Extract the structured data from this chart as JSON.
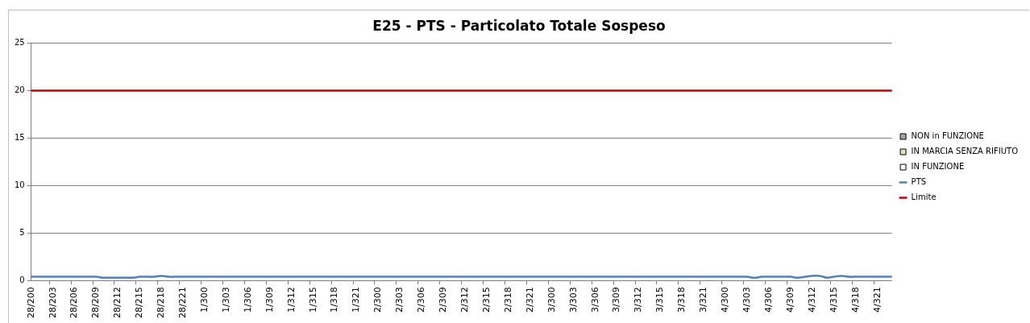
{
  "chart_data": {
    "type": "line",
    "title": "E25 - PTS - Particolato Totale Sospeso",
    "categories": [
      "28/200",
      null,
      null,
      "28/203",
      null,
      null,
      "28/206",
      null,
      null,
      "28/209",
      null,
      null,
      "28/212",
      null,
      null,
      "28/215",
      null,
      null,
      "28/218",
      null,
      null,
      "28/221",
      null,
      null,
      "1/300",
      null,
      null,
      "1/303",
      null,
      null,
      "1/306",
      null,
      null,
      "1/309",
      null,
      null,
      "1/312",
      null,
      null,
      "1/315",
      null,
      null,
      "1/318",
      null,
      null,
      "1/321",
      null,
      null,
      "2/300",
      null,
      null,
      "2/303",
      null,
      null,
      "2/306",
      null,
      null,
      "2/309",
      null,
      null,
      "2/312",
      null,
      null,
      "2/315",
      null,
      null,
      "2/318",
      null,
      null,
      "2/321",
      null,
      null,
      "3/300",
      null,
      null,
      "3/303",
      null,
      null,
      "3/306",
      null,
      null,
      "3/309",
      null,
      null,
      "3/312",
      null,
      null,
      "3/315",
      null,
      null,
      "3/318",
      null,
      null,
      "3/321",
      null,
      null,
      "4/300",
      null,
      null,
      "4/303",
      null,
      null,
      "4/306",
      null,
      null,
      "4/309",
      null,
      null,
      "4/312",
      null,
      null,
      "4/315",
      null,
      null,
      "4/318",
      null,
      null,
      "4/321",
      null,
      null
    ],
    "series": [
      {
        "name": "NON in FUNZIONE",
        "type": "bar",
        "color": "#a6a6a6",
        "values": [
          null,
          null,
          null,
          null,
          null,
          null,
          null,
          null,
          null,
          null,
          null,
          null,
          null,
          null,
          null,
          null,
          null,
          null,
          null,
          null,
          null,
          null,
          null,
          null,
          null,
          null,
          null,
          null,
          null,
          null,
          null,
          null,
          null,
          null,
          null,
          null,
          null,
          null,
          null,
          null,
          null,
          null,
          null,
          null,
          null,
          null,
          null,
          null,
          null,
          null,
          null,
          null,
          null,
          null,
          null,
          null,
          null,
          null,
          null,
          null,
          null,
          null,
          null,
          null,
          null,
          null,
          null,
          null,
          null,
          null,
          null,
          null,
          null,
          null,
          null,
          null,
          null,
          null,
          null,
          null,
          null,
          null,
          null,
          null,
          null,
          null,
          null,
          null,
          null,
          null,
          null,
          null,
          null,
          null,
          null,
          null,
          null,
          null,
          null,
          null,
          null,
          null,
          null,
          null,
          null,
          null,
          null,
          null,
          null,
          null,
          null,
          null,
          null,
          null,
          null,
          null,
          null,
          null,
          null,
          null
        ]
      },
      {
        "name": "IN MARCIA SENZA RIFIUTO",
        "type": "bar",
        "color": "#d7e4bd",
        "values": [
          null,
          null,
          null,
          null,
          null,
          null,
          null,
          null,
          null,
          null,
          null,
          null,
          null,
          null,
          null,
          null,
          null,
          null,
          null,
          null,
          null,
          null,
          null,
          null,
          null,
          null,
          null,
          null,
          null,
          null,
          null,
          null,
          null,
          null,
          null,
          null,
          null,
          null,
          null,
          null,
          null,
          null,
          null,
          null,
          null,
          null,
          null,
          null,
          null,
          null,
          null,
          null,
          null,
          null,
          null,
          null,
          null,
          null,
          null,
          null,
          null,
          null,
          null,
          null,
          null,
          null,
          null,
          null,
          null,
          null,
          null,
          null,
          null,
          null,
          null,
          null,
          null,
          null,
          null,
          null,
          null,
          null,
          null,
          null,
          null,
          null,
          null,
          null,
          null,
          null,
          null,
          null,
          null,
          null,
          null,
          null,
          null,
          null,
          null,
          null,
          null,
          null,
          null,
          null,
          null,
          null,
          null,
          null,
          null,
          null,
          null,
          null,
          null,
          null,
          null,
          null,
          null,
          null,
          null,
          null
        ]
      },
      {
        "name": "IN FUNZIONE",
        "type": "bar",
        "color": "#ffffff",
        "values": [
          null,
          null,
          null,
          null,
          null,
          null,
          null,
          null,
          null,
          null,
          null,
          null,
          null,
          null,
          null,
          null,
          null,
          null,
          null,
          null,
          null,
          null,
          null,
          null,
          null,
          null,
          null,
          null,
          null,
          null,
          null,
          null,
          null,
          null,
          null,
          null,
          null,
          null,
          null,
          null,
          null,
          null,
          null,
          null,
          null,
          null,
          null,
          null,
          null,
          null,
          null,
          null,
          null,
          null,
          null,
          null,
          null,
          null,
          null,
          null,
          null,
          null,
          null,
          null,
          null,
          null,
          null,
          null,
          null,
          null,
          null,
          null,
          null,
          null,
          null,
          null,
          null,
          null,
          null,
          null,
          null,
          null,
          null,
          null,
          null,
          null,
          null,
          null,
          null,
          null,
          null,
          null,
          null,
          null,
          null,
          null,
          null,
          null,
          null,
          null,
          null,
          null,
          null,
          null,
          null,
          null,
          null,
          null,
          null,
          null,
          null,
          null,
          null,
          null,
          null,
          null,
          null,
          null,
          null,
          null
        ]
      },
      {
        "name": "PTS",
        "color": "#4f81bd",
        "values": [
          0.4,
          0.4,
          0.4,
          0.4,
          0.4,
          0.4,
          0.4,
          0.4,
          0.4,
          0.4,
          0.3,
          0.3,
          0.3,
          0.3,
          0.3,
          0.4,
          0.4,
          0.4,
          0.5,
          0.4,
          0.4,
          0.4,
          0.4,
          0.4,
          0.4,
          0.4,
          0.4,
          0.4,
          0.4,
          0.4,
          0.4,
          0.4,
          0.4,
          0.4,
          0.4,
          0.4,
          0.4,
          0.4,
          0.4,
          0.4,
          0.4,
          0.4,
          0.4,
          0.4,
          0.4,
          0.4,
          0.4,
          0.4,
          0.4,
          0.4,
          0.4,
          0.4,
          0.4,
          0.4,
          0.4,
          0.4,
          0.4,
          0.4,
          0.4,
          0.4,
          0.4,
          0.4,
          0.4,
          0.4,
          0.4,
          0.4,
          0.4,
          0.4,
          0.4,
          0.4,
          0.4,
          0.4,
          0.4,
          0.4,
          0.4,
          0.4,
          0.4,
          0.4,
          0.4,
          0.4,
          0.4,
          0.4,
          0.4,
          0.4,
          0.4,
          0.4,
          0.4,
          0.4,
          0.4,
          0.4,
          0.4,
          0.4,
          0.4,
          0.4,
          0.4,
          0.4,
          0.4,
          0.4,
          0.4,
          0.4,
          0.3,
          0.4,
          0.4,
          0.4,
          0.4,
          0.4,
          0.3,
          0.4,
          0.5,
          0.5,
          0.3,
          0.4,
          0.5,
          0.4,
          0.4,
          0.4,
          0.4,
          0.4,
          0.4,
          0.4
        ]
      },
      {
        "name": "Limite",
        "color": "#c00000",
        "values": [
          20,
          20,
          20,
          20,
          20,
          20,
          20,
          20,
          20,
          20,
          20,
          20,
          20,
          20,
          20,
          20,
          20,
          20,
          20,
          20,
          20,
          20,
          20,
          20,
          20,
          20,
          20,
          20,
          20,
          20,
          20,
          20,
          20,
          20,
          20,
          20,
          20,
          20,
          20,
          20,
          20,
          20,
          20,
          20,
          20,
          20,
          20,
          20,
          20,
          20,
          20,
          20,
          20,
          20,
          20,
          20,
          20,
          20,
          20,
          20,
          20,
          20,
          20,
          20,
          20,
          20,
          20,
          20,
          20,
          20,
          20,
          20,
          20,
          20,
          20,
          20,
          20,
          20,
          20,
          20,
          20,
          20,
          20,
          20,
          20,
          20,
          20,
          20,
          20,
          20,
          20,
          20,
          20,
          20,
          20,
          20,
          20,
          20,
          20,
          20,
          20,
          20,
          20,
          20,
          20,
          20,
          20,
          20,
          20,
          20,
          20,
          20,
          20,
          20,
          20,
          20,
          20,
          20,
          20,
          20
        ]
      }
    ],
    "ylim": [
      0,
      25
    ],
    "yticks": [
      0,
      5,
      10,
      15,
      20,
      25
    ],
    "grid": "y",
    "legend": "right",
    "marker": "none"
  }
}
